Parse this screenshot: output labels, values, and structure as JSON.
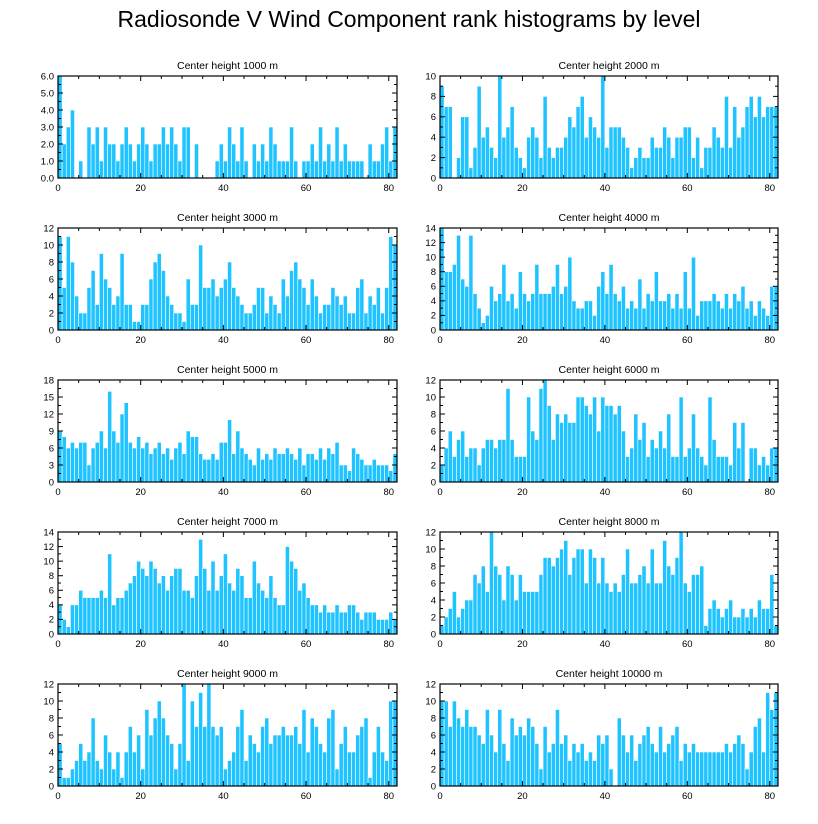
{
  "title": "Radiosonde V Wind Component rank histograms by level",
  "colors": {
    "bar_fill": "#1ec3ff",
    "bar_edge": "#ffffff",
    "axis": "#000000"
  },
  "chart_data": [
    {
      "type": "bar",
      "title": "Center height 1000 m",
      "xlim": [
        0,
        82
      ],
      "x_ticks": [
        "0",
        "20",
        "40",
        "60",
        "80"
      ],
      "ylim": [
        0,
        6
      ],
      "y_ticks": [
        "0.0",
        "1.0",
        "2.0",
        "3.0",
        "4.0",
        "5.0",
        "6.0"
      ],
      "values": [
        6,
        2,
        3,
        4,
        0,
        1,
        0,
        3,
        2,
        3,
        1,
        3,
        2,
        2,
        1,
        2,
        3,
        2,
        1,
        2,
        3,
        2,
        1,
        2,
        2,
        3,
        2,
        3,
        2,
        1,
        3,
        3,
        0,
        2,
        0,
        0,
        0,
        0,
        1,
        2,
        1,
        3,
        2,
        1,
        3,
        1,
        0,
        2,
        1,
        2,
        1,
        3,
        2,
        1,
        1,
        1,
        3,
        1,
        0,
        1,
        1,
        2,
        1,
        3,
        1,
        2,
        1,
        3,
        1,
        2,
        1,
        1,
        1,
        1,
        0,
        2,
        1,
        1,
        2,
        3,
        1,
        3
      ]
    },
    {
      "type": "bar",
      "title": "Center height 2000 m",
      "xlim": [
        0,
        82
      ],
      "x_ticks": [
        "0",
        "20",
        "40",
        "60",
        "80"
      ],
      "ylim": [
        0,
        10
      ],
      "y_ticks": [
        "0",
        "2",
        "4",
        "6",
        "8",
        "10"
      ],
      "values": [
        9,
        7,
        7,
        0,
        2,
        6,
        6,
        1,
        3,
        9,
        4,
        5,
        3,
        2,
        10,
        4,
        5,
        7,
        3,
        2,
        1,
        4,
        5,
        4,
        2,
        8,
        3,
        2,
        3,
        3,
        4,
        6,
        5,
        7,
        8,
        4,
        6,
        5,
        4,
        10,
        3,
        5,
        5,
        5,
        4,
        3,
        1,
        2,
        3,
        2,
        2,
        4,
        3,
        3,
        5,
        4,
        2,
        4,
        4,
        5,
        5,
        2,
        4,
        1,
        3,
        3,
        5,
        4,
        3,
        8,
        3,
        7,
        4,
        5,
        7,
        8,
        6,
        8,
        6,
        7,
        7,
        7
      ]
    },
    {
      "type": "bar",
      "title": "Center height 3000 m",
      "xlim": [
        0,
        82
      ],
      "x_ticks": [
        "0",
        "20",
        "40",
        "60",
        "80"
      ],
      "ylim": [
        0,
        12
      ],
      "y_ticks": [
        "0",
        "2",
        "4",
        "6",
        "8",
        "10",
        "12"
      ],
      "values": [
        11,
        5,
        11,
        8,
        4,
        2,
        2,
        5,
        7,
        3,
        9,
        6,
        5,
        3,
        4,
        9,
        3,
        3,
        1,
        1,
        3,
        3,
        6,
        8,
        9,
        7,
        4,
        3,
        2,
        2,
        1,
        6,
        3,
        3,
        10,
        5,
        5,
        6,
        4,
        5,
        6,
        8,
        5,
        4,
        3,
        2,
        2,
        3,
        5,
        5,
        2,
        4,
        3,
        2,
        6,
        4,
        7,
        8,
        6,
        5,
        3,
        6,
        4,
        2,
        3,
        3,
        5,
        4,
        3,
        4,
        2,
        2,
        5,
        6,
        2,
        4,
        3,
        5,
        2,
        5,
        11,
        10
      ]
    },
    {
      "type": "bar",
      "title": "Center height 4000 m",
      "xlim": [
        0,
        82
      ],
      "x_ticks": [
        "0",
        "20",
        "40",
        "60",
        "80"
      ],
      "ylim": [
        0,
        14
      ],
      "y_ticks": [
        "0",
        "2",
        "4",
        "6",
        "8",
        "10",
        "12",
        "14"
      ],
      "values": [
        14,
        8,
        8,
        9,
        13,
        7,
        6,
        13,
        5,
        3,
        1,
        2,
        6,
        4,
        5,
        9,
        4,
        5,
        3,
        8,
        5,
        4,
        5,
        9,
        5,
        5,
        5,
        6,
        9,
        5,
        6,
        10,
        4,
        3,
        3,
        4,
        4,
        2,
        6,
        8,
        5,
        9,
        5,
        4,
        6,
        3,
        4,
        3,
        7,
        3,
        5,
        4,
        8,
        4,
        4,
        5,
        3,
        5,
        3,
        8,
        3,
        10,
        2,
        4,
        4,
        4,
        5,
        4,
        3,
        5,
        3,
        5,
        4,
        6,
        3,
        4,
        2,
        4,
        3,
        2,
        6,
        6
      ]
    },
    {
      "type": "bar",
      "title": "Center height 5000 m",
      "xlim": [
        0,
        82
      ],
      "x_ticks": [
        "0",
        "20",
        "40",
        "60",
        "80"
      ],
      "ylim": [
        0,
        18
      ],
      "y_ticks": [
        "0",
        "3",
        "6",
        "9",
        "12",
        "15",
        "18"
      ],
      "values": [
        9,
        8,
        6,
        7,
        6,
        7,
        7,
        3,
        6,
        7,
        9,
        6,
        16,
        9,
        7,
        12,
        14,
        7,
        6,
        8,
        6,
        7,
        5,
        6,
        7,
        5,
        6,
        4,
        6,
        7,
        5,
        9,
        8,
        8,
        5,
        4,
        4,
        5,
        4,
        7,
        7,
        11,
        5,
        9,
        6,
        5,
        4,
        3,
        6,
        4,
        5,
        4,
        6,
        5,
        5,
        6,
        5,
        4,
        6,
        3,
        5,
        5,
        4,
        6,
        4,
        6,
        5,
        7,
        3,
        3,
        2,
        6,
        5,
        4,
        3,
        3,
        4,
        3,
        3,
        3,
        2,
        5
      ]
    },
    {
      "type": "bar",
      "title": "Center height 6000 m",
      "xlim": [
        0,
        82
      ],
      "x_ticks": [
        "0",
        "20",
        "40",
        "60",
        "80"
      ],
      "ylim": [
        0,
        12
      ],
      "y_ticks": [
        "0",
        "2",
        "4",
        "6",
        "8",
        "10",
        "12"
      ],
      "values": [
        2,
        4,
        6,
        3,
        5,
        6,
        3,
        4,
        4,
        2,
        4,
        5,
        5,
        4,
        5,
        5,
        11,
        5,
        3,
        3,
        3,
        10,
        6,
        5,
        11,
        12,
        9,
        5,
        8,
        7,
        8,
        7,
        7,
        10,
        10,
        9,
        8,
        10,
        6,
        10,
        9,
        9,
        8,
        9,
        6,
        3,
        4,
        8,
        5,
        7,
        3,
        5,
        4,
        6,
        4,
        8,
        3,
        3,
        10,
        3,
        4,
        8,
        4,
        3,
        2,
        10,
        5,
        3,
        3,
        3,
        2,
        7,
        4,
        7,
        0,
        4,
        4,
        2,
        3,
        2,
        4,
        4
      ]
    },
    {
      "type": "bar",
      "title": "Center height 7000 m",
      "xlim": [
        0,
        82
      ],
      "x_ticks": [
        "0",
        "20",
        "40",
        "60",
        "80"
      ],
      "ylim": [
        0,
        14
      ],
      "y_ticks": [
        "0",
        "2",
        "4",
        "6",
        "8",
        "10",
        "12",
        "14"
      ],
      "values": [
        4,
        2,
        1,
        4,
        4,
        6,
        5,
        5,
        5,
        5,
        6,
        5,
        11,
        4,
        5,
        5,
        6,
        7,
        8,
        10,
        9,
        8,
        10,
        9,
        7,
        8,
        6,
        8,
        9,
        9,
        6,
        6,
        5,
        8,
        13,
        9,
        6,
        10,
        6,
        8,
        11,
        7,
        6,
        9,
        8,
        5,
        5,
        10,
        7,
        6,
        5,
        8,
        5,
        4,
        4,
        12,
        10,
        9,
        6,
        7,
        5,
        4,
        4,
        3,
        4,
        3,
        3,
        4,
        3,
        3,
        4,
        4,
        3,
        2,
        3,
        3,
        3,
        2,
        2,
        2,
        3,
        2
      ]
    },
    {
      "type": "bar",
      "title": "Center height 8000 m",
      "xlim": [
        0,
        82
      ],
      "x_ticks": [
        "0",
        "20",
        "40",
        "60",
        "80"
      ],
      "ylim": [
        0,
        12
      ],
      "y_ticks": [
        "0",
        "2",
        "4",
        "6",
        "8",
        "10",
        "12"
      ],
      "values": [
        1,
        2,
        3,
        5,
        2,
        3,
        4,
        4,
        7,
        6,
        8,
        5,
        12,
        8,
        7,
        4,
        8,
        7,
        4,
        7,
        5,
        5,
        5,
        5,
        7,
        9,
        9,
        8,
        9,
        10,
        11,
        7,
        9,
        10,
        10,
        6,
        10,
        9,
        6,
        9,
        6,
        5,
        6,
        5,
        7,
        10,
        6,
        6,
        7,
        8,
        6,
        10,
        6,
        6,
        11,
        8,
        7,
        9,
        12,
        6,
        5,
        7,
        7,
        8,
        1,
        3,
        4,
        3,
        2,
        3,
        4,
        2,
        2,
        3,
        2,
        3,
        2,
        4,
        3,
        3,
        7,
        1
      ]
    },
    {
      "type": "bar",
      "title": "Center height 9000 m",
      "xlim": [
        0,
        82
      ],
      "x_ticks": [
        "0",
        "20",
        "40",
        "60",
        "80"
      ],
      "ylim": [
        0,
        12
      ],
      "y_ticks": [
        "0",
        "2",
        "4",
        "6",
        "8",
        "10",
        "12"
      ],
      "values": [
        5,
        1,
        1,
        2,
        3,
        5,
        3,
        4,
        8,
        3,
        2,
        6,
        4,
        2,
        4,
        1,
        4,
        7,
        4,
        6,
        2,
        9,
        6,
        8,
        10,
        8,
        6,
        5,
        2,
        5,
        12,
        3,
        10,
        7,
        11,
        7,
        12,
        7,
        6,
        7,
        2,
        3,
        4,
        7,
        9,
        3,
        6,
        5,
        4,
        7,
        8,
        5,
        6,
        6,
        7,
        6,
        6,
        7,
        5,
        9,
        4,
        8,
        7,
        5,
        4,
        8,
        9,
        2,
        5,
        7,
        4,
        4,
        6,
        7,
        8,
        1,
        4,
        7,
        4,
        3,
        10,
        10
      ]
    },
    {
      "type": "bar",
      "title": "Center height 10000 m",
      "xlim": [
        0,
        82
      ],
      "x_ticks": [
        "0",
        "20",
        "40",
        "60",
        "80"
      ],
      "ylim": [
        0,
        12
      ],
      "y_ticks": [
        "0",
        "2",
        "4",
        "6",
        "8",
        "10",
        "12"
      ],
      "values": [
        10,
        10,
        7,
        10,
        8,
        7,
        9,
        7,
        7,
        6,
        5,
        9,
        6,
        4,
        9,
        5,
        3,
        8,
        6,
        7,
        6,
        8,
        7,
        5,
        2,
        7,
        4,
        5,
        9,
        5,
        6,
        3,
        5,
        4,
        5,
        3,
        4,
        3,
        6,
        5,
        6,
        2,
        0,
        8,
        6,
        4,
        6,
        3,
        5,
        6,
        7,
        5,
        4,
        7,
        4,
        5,
        6,
        7,
        3,
        5,
        4,
        5,
        4,
        4,
        4,
        4,
        4,
        4,
        4,
        5,
        4,
        5,
        6,
        5,
        2,
        4,
        7,
        8,
        4,
        11,
        9,
        11
      ]
    }
  ]
}
